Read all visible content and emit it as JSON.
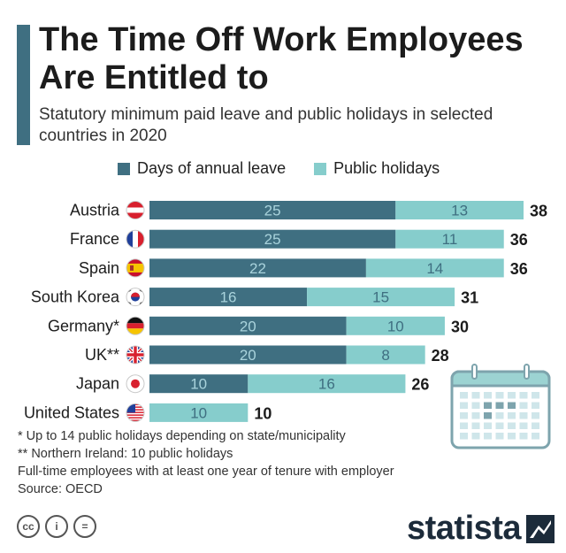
{
  "title": "The Time Off Work Employees Are Entitled to",
  "subtitle": "Statutory minimum paid leave and public holidays in selected countries in 2020",
  "legend": {
    "annual": "Days of annual leave",
    "public": "Public holidays"
  },
  "colors": {
    "annual": "#3f6f81",
    "public": "#86cdcc",
    "accent": "#3f6f81",
    "text": "#1c1c1c"
  },
  "chart_data": {
    "type": "bar",
    "orientation": "horizontal",
    "stacked": true,
    "categories": [
      "Austria",
      "France",
      "Spain",
      "South Korea",
      "Germany*",
      "UK**",
      "Japan",
      "United States"
    ],
    "flags": [
      "austria-flag-icon",
      "france-flag-icon",
      "spain-flag-icon",
      "south-korea-flag-icon",
      "germany-flag-icon",
      "uk-flag-icon",
      "japan-flag-icon",
      "usa-flag-icon"
    ],
    "series": [
      {
        "name": "Days of annual leave",
        "values": [
          25,
          25,
          22,
          16,
          20,
          20,
          10,
          0
        ]
      },
      {
        "name": "Public holidays",
        "values": [
          13,
          11,
          14,
          15,
          10,
          8,
          16,
          10
        ]
      }
    ],
    "totals": [
      38,
      36,
      36,
      31,
      30,
      28,
      26,
      10
    ],
    "xlim": [
      0,
      38
    ]
  },
  "footnotes": [
    "*   Up to 14 public holidays depending on state/municipality",
    "** Northern Ireland: 10 public holidays",
    "Full-time employees with at least one year of tenure with employer",
    "Source: OECD"
  ],
  "license": [
    "cc",
    "i",
    "="
  ],
  "brand": "statista"
}
